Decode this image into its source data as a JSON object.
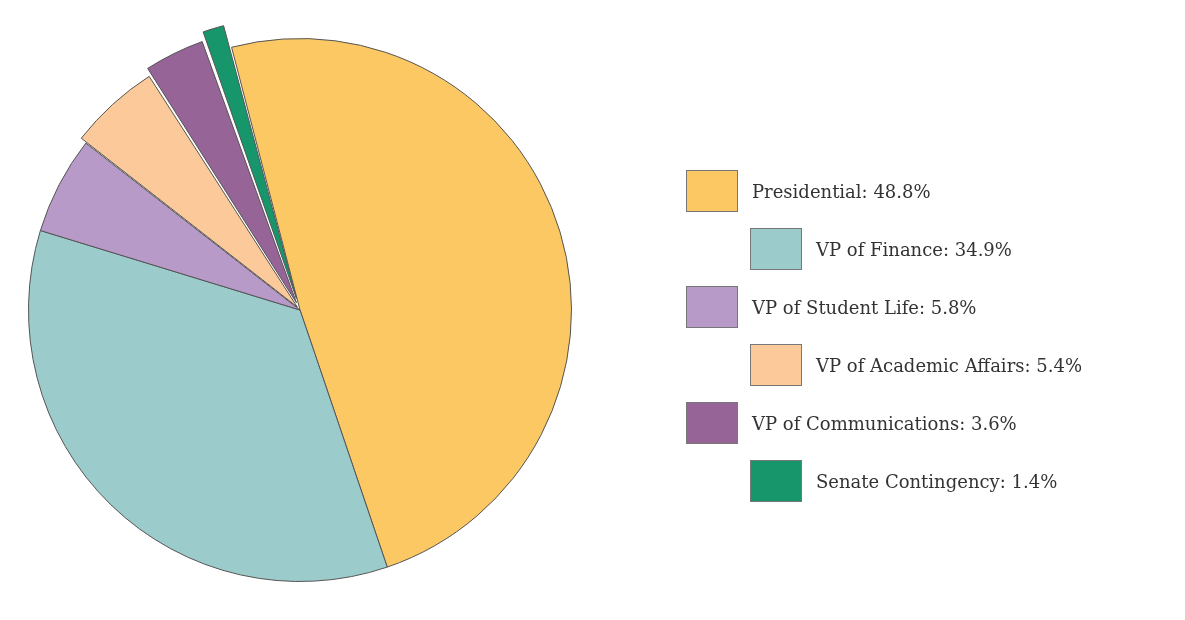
{
  "chart_data": {
    "type": "pie",
    "categories": [
      "Presidential: 48.8%",
      "VP of Finance: 34.9%",
      "VP of Student Life: 5.8%",
      "VP of Academic Affairs: 5.4%",
      "VP of Communications: 3.6%",
      "Senate Contingency: 1.4%"
    ],
    "values": [
      48.8,
      34.9,
      5.8,
      5.4,
      3.6,
      1.4
    ],
    "colors": [
      "#fcc864",
      "#9ccbcb",
      "#b89ac8",
      "#fbc99a",
      "#976497",
      "#17966b"
    ],
    "legend": "right"
  }
}
